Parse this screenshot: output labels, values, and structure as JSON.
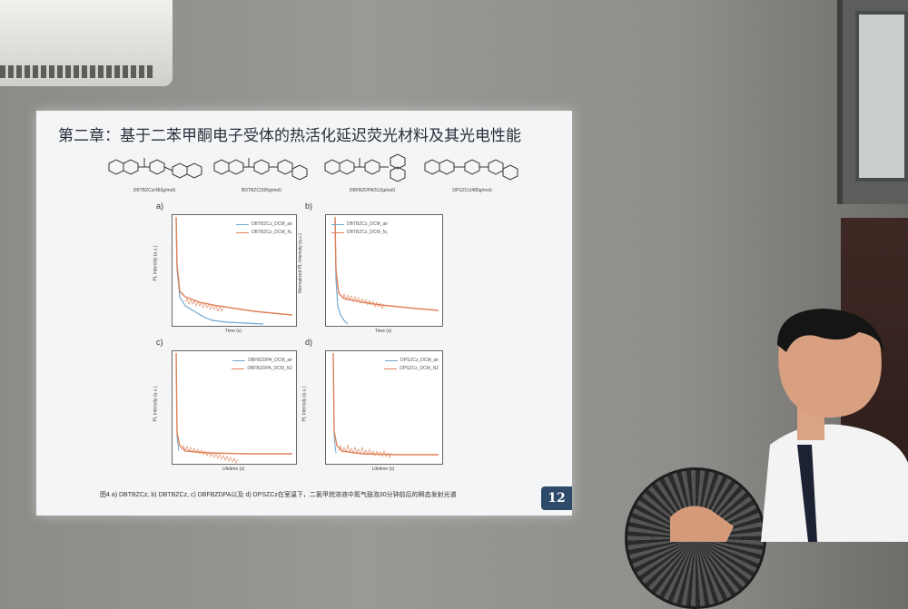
{
  "slide": {
    "title": "第二章：基于二苯甲酮电子受体的热活化延迟荧光材料及其光电性能",
    "molecules": [
      {
        "label": "DBTBZCz(483g/mol)"
      },
      {
        "label": "BDTBZC(595g/mol)"
      },
      {
        "label": "DBFBZDPA(513g/mol)"
      },
      {
        "label": "DPSZCz(485g/mol)"
      }
    ],
    "panels": [
      {
        "letter": "a)",
        "legend": [
          "DBTBZCz_DCM_air",
          "DBTBZCz_DCM_N₂"
        ],
        "xlabel": "Time (s)",
        "ylabel": "PL Intensity (a.u.)"
      },
      {
        "letter": "b)",
        "legend": [
          "DBTBZCz_DCM_air",
          "DBTBZCz_DCM_N₂"
        ],
        "xlabel": "Time (s)",
        "ylabel": "Normalized PL Intensity (a.u.)"
      },
      {
        "letter": "c)",
        "legend": [
          "DBFBZDPA_DCM_air",
          "DBFBZDPA_DCM_N2"
        ],
        "xlabel": "Lifetime (s)",
        "ylabel": "PL Intensity (a.u.)"
      },
      {
        "letter": "d)",
        "legend": [
          "DPSZCz_DCM_air",
          "DPSZCz_DCM_N2"
        ],
        "xlabel": "Lifetime (s)",
        "ylabel": "PL Intensity (a.u.)"
      }
    ],
    "caption": "图4 a) DBTBZCz, b) DBTBZCz, c) DBFBZDPA以及 d) DPSZCz在室温下，二氯甲烷溶液中氮气鼓泡30分钟前后的瞬态发射光谱",
    "page_number": "12"
  },
  "colors": {
    "series_air": "#6fa8cf",
    "series_n2": "#e0825a"
  }
}
